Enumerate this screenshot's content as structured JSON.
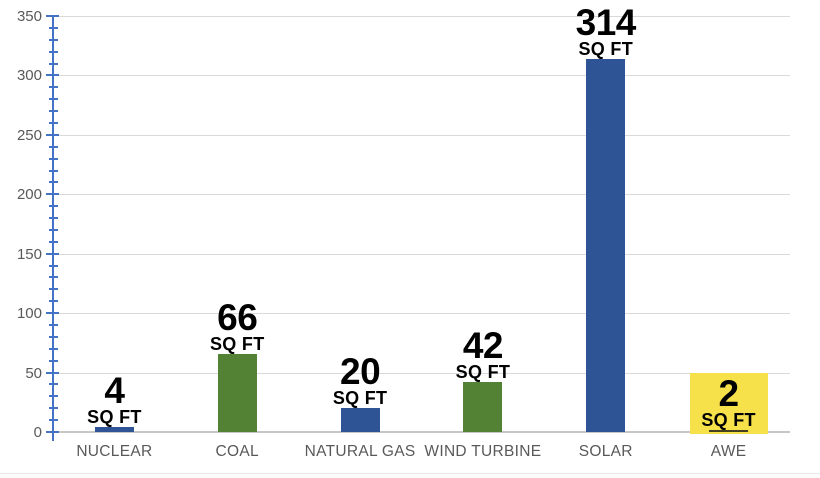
{
  "chart_data": {
    "type": "bar",
    "title": "",
    "categories": [
      "NUCLEAR",
      "COAL",
      "NATURAL GAS",
      "WIND TURBINE",
      "SOLAR",
      "AWE"
    ],
    "values": [
      4,
      66,
      20,
      42,
      314,
      2
    ],
    "value_labels": [
      "4",
      "66",
      "20",
      "42",
      "314",
      "2"
    ],
    "unit_label": "SQ FT",
    "bar_colors": [
      "#2F5496",
      "#548235",
      "#2F5496",
      "#548235",
      "#2F5496",
      "#45411E"
    ],
    "highlight": {
      "category_index": 5,
      "color": "#F6E14B",
      "top_value": 50
    },
    "xlabel": "",
    "ylabel": "",
    "ylim": [
      0,
      350
    ],
    "ytick_step": 50,
    "ytick_labels": [
      "0",
      "50",
      "100",
      "150",
      "200",
      "250",
      "300",
      "350"
    ],
    "yminor_step": 10,
    "grid": true,
    "legend": false
  },
  "colors": {
    "axis": "#4472C4",
    "gridline": "#D9D9D9",
    "baseline": "#C7C7C7",
    "tick_label_text": "#595959",
    "category_label_text": "#595959",
    "value_label_text": "#000000",
    "background": "#FFFFFF"
  }
}
